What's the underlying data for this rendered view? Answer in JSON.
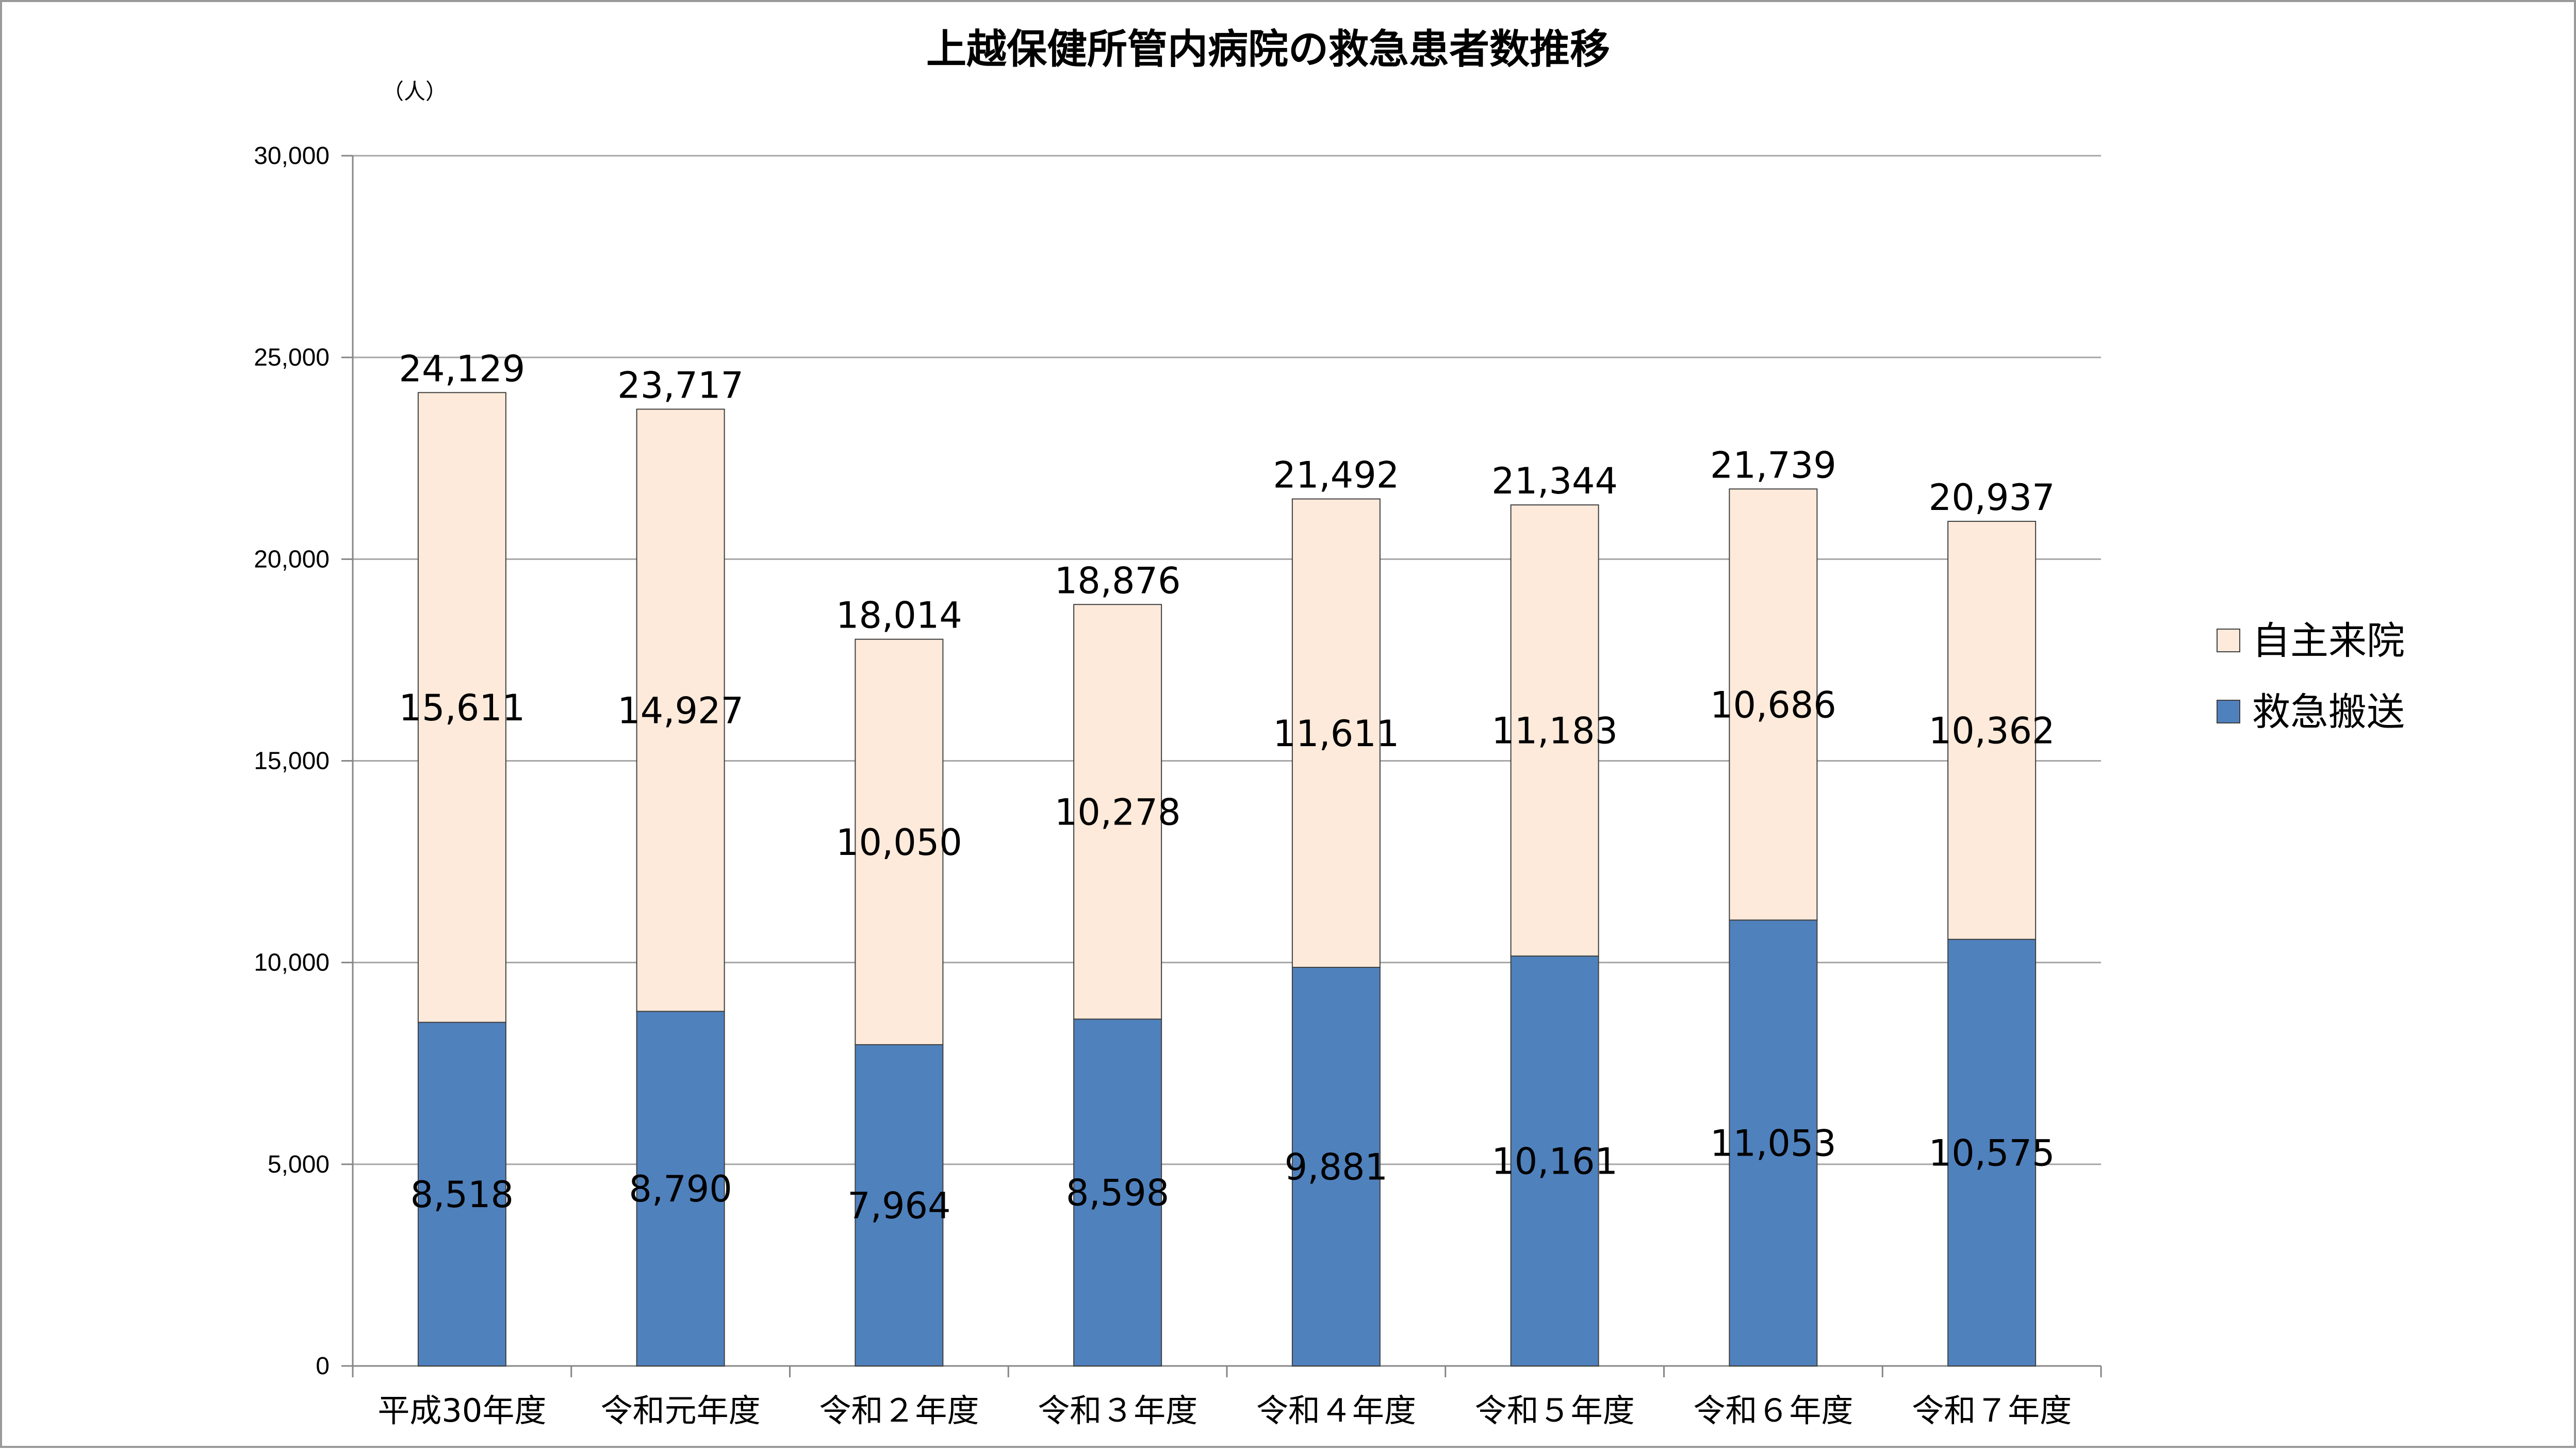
{
  "chart_data": {
    "type": "bar",
    "stacked": true,
    "title": "上越保健所管内病院の救急患者数推移",
    "unit_label": "（人）",
    "categories": [
      "平成30年度",
      "令和元年度",
      "令和２年度",
      "令和３年度",
      "令和４年度",
      "令和５年度",
      "令和６年度",
      "令和７年度"
    ],
    "series": [
      {
        "name": "救急搬送",
        "color": "#4f81bd",
        "values": [
          8518,
          8790,
          7964,
          8598,
          9881,
          10161,
          11053,
          10575
        ],
        "labels": [
          "8,518",
          "8,790",
          "7,964",
          "8,598",
          "9,881",
          "10,161",
          "11,053",
          "10,575"
        ]
      },
      {
        "name": "自主来院",
        "color": "#fdeada",
        "values": [
          15611,
          14927,
          10050,
          10278,
          11611,
          11183,
          10686,
          10362
        ],
        "labels": [
          "15,611",
          "14,927",
          "10,050",
          "10,278",
          "11,611",
          "11,183",
          "10,686",
          "10,362"
        ]
      }
    ],
    "totals": [
      24129,
      23717,
      18014,
      18876,
      21492,
      21344,
      21739,
      20937
    ],
    "total_labels": [
      "24,129",
      "23,717",
      "18,014",
      "18,876",
      "21,492",
      "21,344",
      "21,739",
      "20,937"
    ],
    "ylim": [
      0,
      30000
    ],
    "yticks": [
      0,
      5000,
      10000,
      15000,
      20000,
      25000,
      30000
    ],
    "ytick_labels": [
      "0",
      "5,000",
      "10,000",
      "15,000",
      "20,000",
      "25,000",
      "30,000"
    ],
    "grid": true,
    "legend_position": "right",
    "legend_order": [
      "自主来院",
      "救急搬送"
    ],
    "gridline_color": "#a6a6a6",
    "bar_outline_color": "#404040"
  }
}
